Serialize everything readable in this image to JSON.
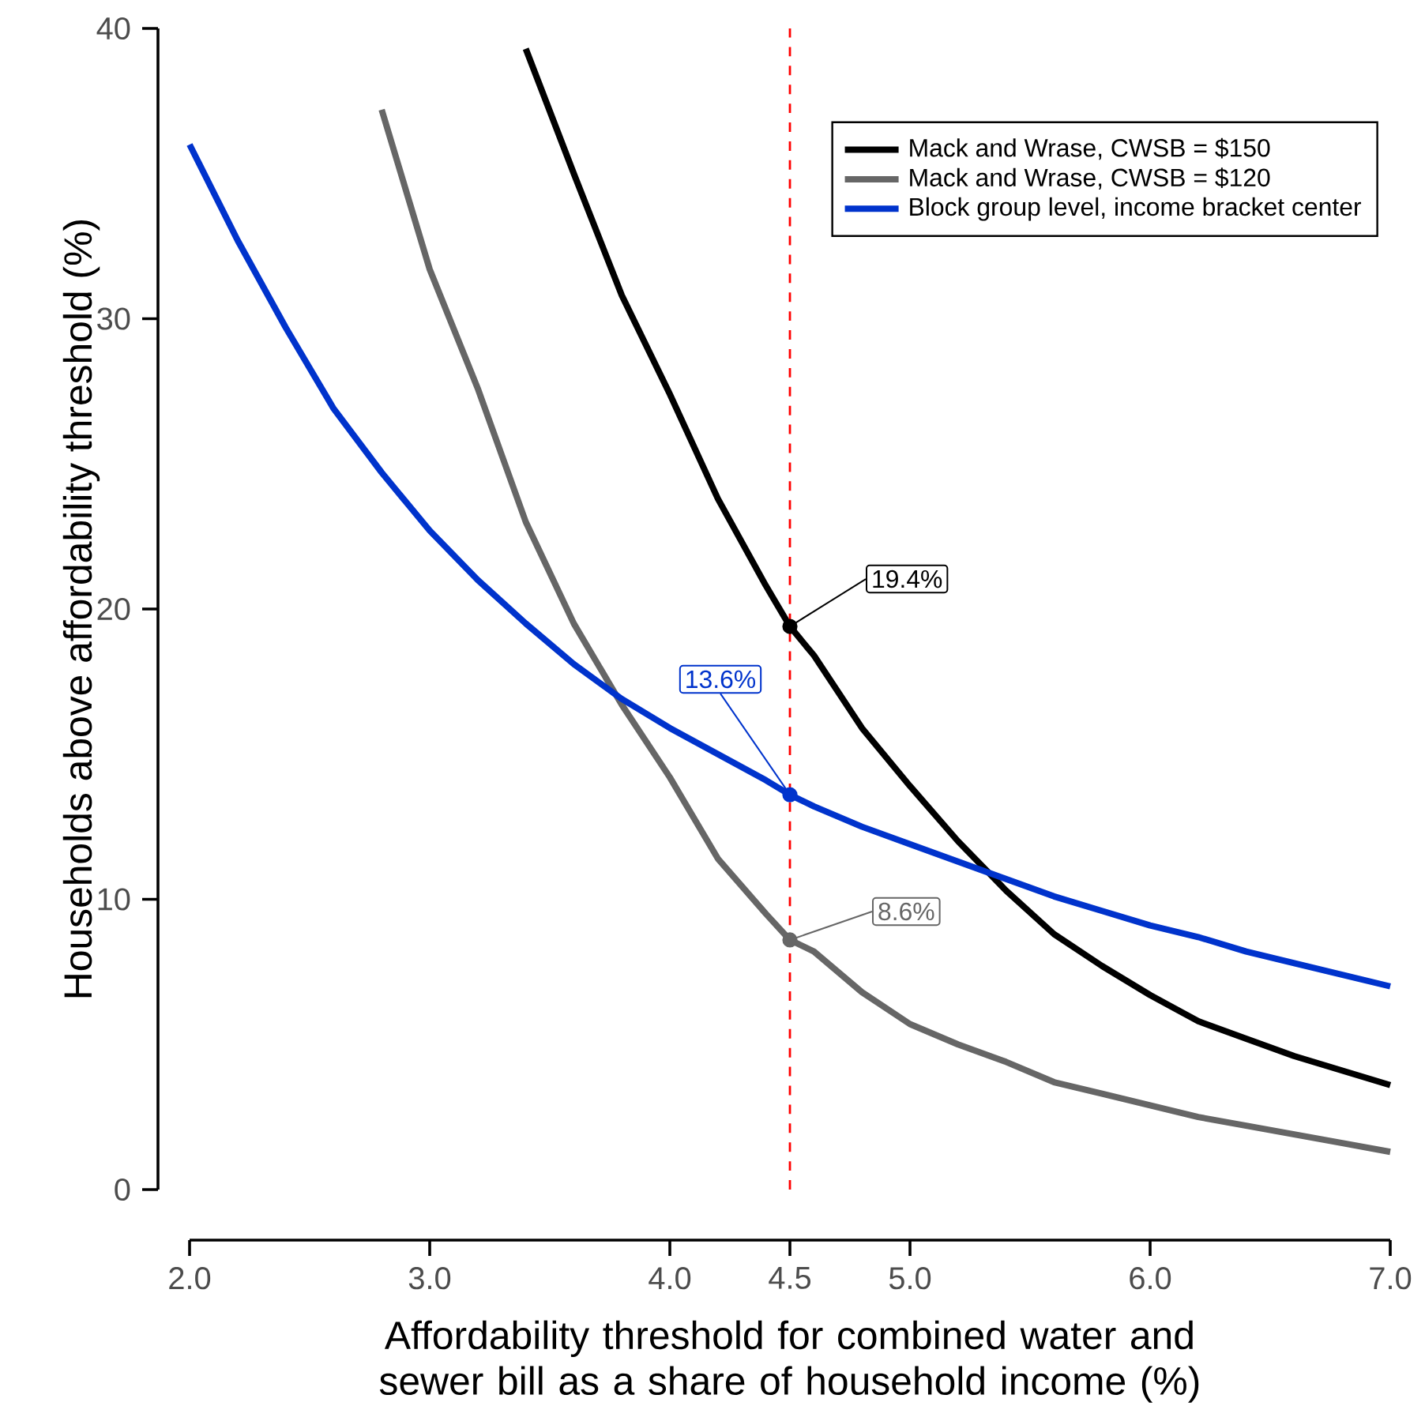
{
  "chart_data": {
    "type": "line",
    "xlabel": "Affordability threshold for combined water and sewer bill as a share of household income (%)",
    "ylabel": "Households above affordability threshold (%)",
    "xlim": [
      2,
      7
    ],
    "ylim": [
      0,
      40
    ],
    "xticks": [
      {
        "value": 2,
        "label": "2.0"
      },
      {
        "value": 3,
        "label": "3.0"
      },
      {
        "value": 4,
        "label": "4.0"
      },
      {
        "value": 4.5,
        "label": "4.5"
      },
      {
        "value": 5,
        "label": "5.0"
      },
      {
        "value": 6,
        "label": "6.0"
      },
      {
        "value": 7,
        "label": "7.0"
      }
    ],
    "yticks": [
      0,
      10,
      20,
      30,
      40
    ],
    "legend": "top right",
    "grid": false,
    "marker": "none",
    "line_style": "solid",
    "series": [
      {
        "name": "Mack and Wrase, CWSB = $150",
        "color": "#000000",
        "x": [
          3.4,
          3.6,
          3.8,
          4.0,
          4.2,
          4.4,
          4.5,
          4.6,
          4.8,
          5.0,
          5.2,
          5.4,
          5.6,
          5.8,
          6.0,
          6.2,
          6.4,
          6.6,
          6.8,
          7.0
        ],
        "values": [
          39.3,
          35.0,
          30.8,
          27.4,
          23.8,
          20.8,
          19.4,
          18.4,
          15.9,
          13.9,
          12.0,
          10.3,
          8.8,
          7.7,
          6.7,
          5.8,
          5.2,
          4.6,
          4.1,
          3.6
        ]
      },
      {
        "name": "Mack and Wrase, CWSB = $120",
        "color": "#666666",
        "x": [
          2.8,
          3.0,
          3.2,
          3.4,
          3.6,
          3.8,
          4.0,
          4.2,
          4.4,
          4.5,
          4.6,
          4.8,
          5.0,
          5.2,
          5.4,
          5.6,
          5.8,
          6.0,
          6.2,
          6.4,
          6.6,
          6.8,
          7.0
        ],
        "values": [
          37.2,
          31.7,
          27.6,
          23.0,
          19.5,
          16.7,
          14.2,
          11.4,
          9.5,
          8.6,
          8.2,
          6.8,
          5.7,
          5.0,
          4.4,
          3.7,
          3.3,
          2.9,
          2.5,
          2.2,
          1.9,
          1.6,
          1.3
        ]
      },
      {
        "name": "Block group level, income bracket center",
        "color": "#0033cc",
        "x": [
          2.0,
          2.2,
          2.4,
          2.6,
          2.8,
          3.0,
          3.2,
          3.4,
          3.6,
          3.8,
          4.0,
          4.2,
          4.4,
          4.5,
          4.6,
          4.8,
          5.0,
          5.2,
          5.4,
          5.6,
          5.8,
          6.0,
          6.2,
          6.4,
          6.6,
          6.8,
          7.0
        ],
        "values": [
          36.0,
          32.7,
          29.7,
          26.9,
          24.7,
          22.7,
          21.0,
          19.5,
          18.1,
          16.9,
          15.9,
          15.0,
          14.1,
          13.6,
          13.2,
          12.5,
          11.9,
          11.3,
          10.7,
          10.1,
          9.6,
          9.1,
          8.7,
          8.2,
          7.8,
          7.4,
          7.0
        ]
      },
      {
        "type": "scatter",
        "marker": "circle",
        "x": [
          4.5,
          4.5,
          4.5
        ],
        "values": [
          19.4,
          13.6,
          8.6
        ],
        "colors": [
          "#000000",
          "#0033cc",
          "#666666"
        ],
        "value_labels": [
          "19.4%",
          "13.6%",
          "8.6%"
        ]
      }
    ],
    "ref_lines": [
      {
        "axis": "x",
        "value": 4.5,
        "color": "#ff0000",
        "line_style": "dashed"
      }
    ]
  }
}
